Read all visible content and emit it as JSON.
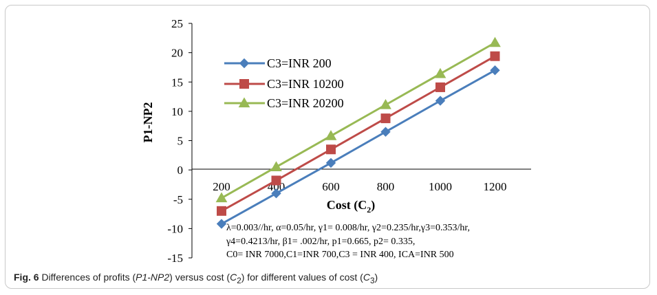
{
  "caption": {
    "figure_label": "Fig. 6",
    "text_a": "Differences of profits (",
    "text_italic_1": "P1-NP2",
    "text_b": ") versus cost (",
    "text_italic_2": "C",
    "sub_2": "2",
    "text_c": ") for different values of cost (",
    "text_italic_3": "C",
    "sub_3": "3",
    "text_d": ")"
  },
  "chart_data": {
    "type": "line",
    "title": "",
    "xlabel": "Cost (C2)",
    "xlabel_main": "Cost (C",
    "xlabel_sub": "2",
    "xlabel_close": ")",
    "ylabel": "P1-NP2",
    "x": [
      200,
      400,
      600,
      800,
      1000,
      1200
    ],
    "x_tick_labels": [
      "200",
      "400",
      "600",
      "800",
      "1000",
      "1200"
    ],
    "y_ticks": [
      25,
      20,
      15,
      10,
      5,
      0,
      -5,
      -10,
      -15
    ],
    "ylim": [
      -15,
      25
    ],
    "grid": false,
    "legend_position": "top-left",
    "series": [
      {
        "name": "C3=INR 200",
        "color": "#4a7ebb",
        "marker": "diamond",
        "values": [
          -9.2,
          -4.0,
          1.2,
          6.5,
          11.8,
          17.0
        ]
      },
      {
        "name": "C3=INR 10200",
        "color": "#be4b48",
        "marker": "square",
        "values": [
          -7.0,
          -1.8,
          3.5,
          8.8,
          14.1,
          19.4
        ]
      },
      {
        "name": "C3=INR 20200",
        "color": "#98b954",
        "marker": "triangle",
        "values": [
          -4.8,
          0.5,
          5.8,
          11.1,
          16.4,
          21.7
        ]
      }
    ],
    "annotation_lines": [
      "λ=0.003//hr, α=0.05/hr, γ1= 0.008/hr, γ2=0.235/hr,γ3=0.353/hr,",
      "γ4=0.4213/hr, β1= .002/hr, p1=0.665, p2= 0.335,",
      "C0= INR 7000,C1=INR 700,C3 = INR 400, ICA=INR 500"
    ]
  }
}
